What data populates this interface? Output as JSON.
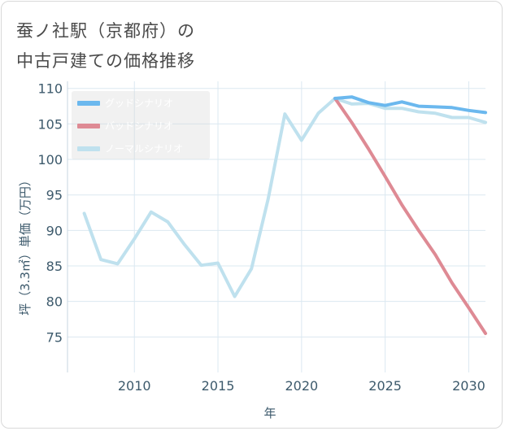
{
  "title_line1": "蚕ノ社駅（京都府）の",
  "title_line2": "中古戸建ての価格推移",
  "chart_data": {
    "type": "line",
    "title": "蚕ノ社駅（京都府）の中古戸建ての価格推移",
    "xlabel": "年",
    "ylabel": "坪（3.3㎡）単価（万円）",
    "xlim": [
      2006,
      2031
    ],
    "ylim": [
      70,
      111
    ],
    "xticks": [
      2010,
      2015,
      2020,
      2025,
      2030
    ],
    "yticks": [
      75,
      80,
      85,
      90,
      95,
      100,
      105,
      110
    ],
    "legend_position": "top-left",
    "series": [
      {
        "name": "グッドシナリオ",
        "color": "#6bb8ee",
        "x": [
          2022,
          2023,
          2024,
          2025,
          2026,
          2027,
          2028,
          2029,
          2030,
          2031
        ],
        "y": [
          108.6,
          108.8,
          108.0,
          107.6,
          108.1,
          107.5,
          107.4,
          107.3,
          106.9,
          106.6
        ]
      },
      {
        "name": "バッドシナリオ",
        "color": "#de8a94",
        "x": [
          2022,
          2023,
          2024,
          2025,
          2026,
          2027,
          2028,
          2029,
          2030,
          2031
        ],
        "y": [
          108.6,
          105.2,
          101.5,
          97.6,
          93.6,
          90.0,
          86.6,
          82.6,
          79.1,
          75.5
        ]
      },
      {
        "name": "ノーマルシナリオ",
        "color": "#bfe1ee",
        "x": [
          2007,
          2008,
          2009,
          2010,
          2011,
          2012,
          2013,
          2014,
          2015,
          2016,
          2017,
          2018,
          2019,
          2020,
          2021,
          2022,
          2023,
          2024,
          2025,
          2026,
          2027,
          2028,
          2029,
          2030,
          2031
        ],
        "y": [
          92.4,
          85.9,
          85.3,
          88.8,
          92.6,
          91.2,
          88.0,
          85.1,
          85.4,
          80.7,
          84.6,
          94.4,
          106.4,
          102.7,
          106.5,
          108.6,
          107.8,
          107.9,
          107.2,
          107.2,
          106.7,
          106.5,
          105.9,
          105.9,
          105.2
        ]
      }
    ]
  }
}
